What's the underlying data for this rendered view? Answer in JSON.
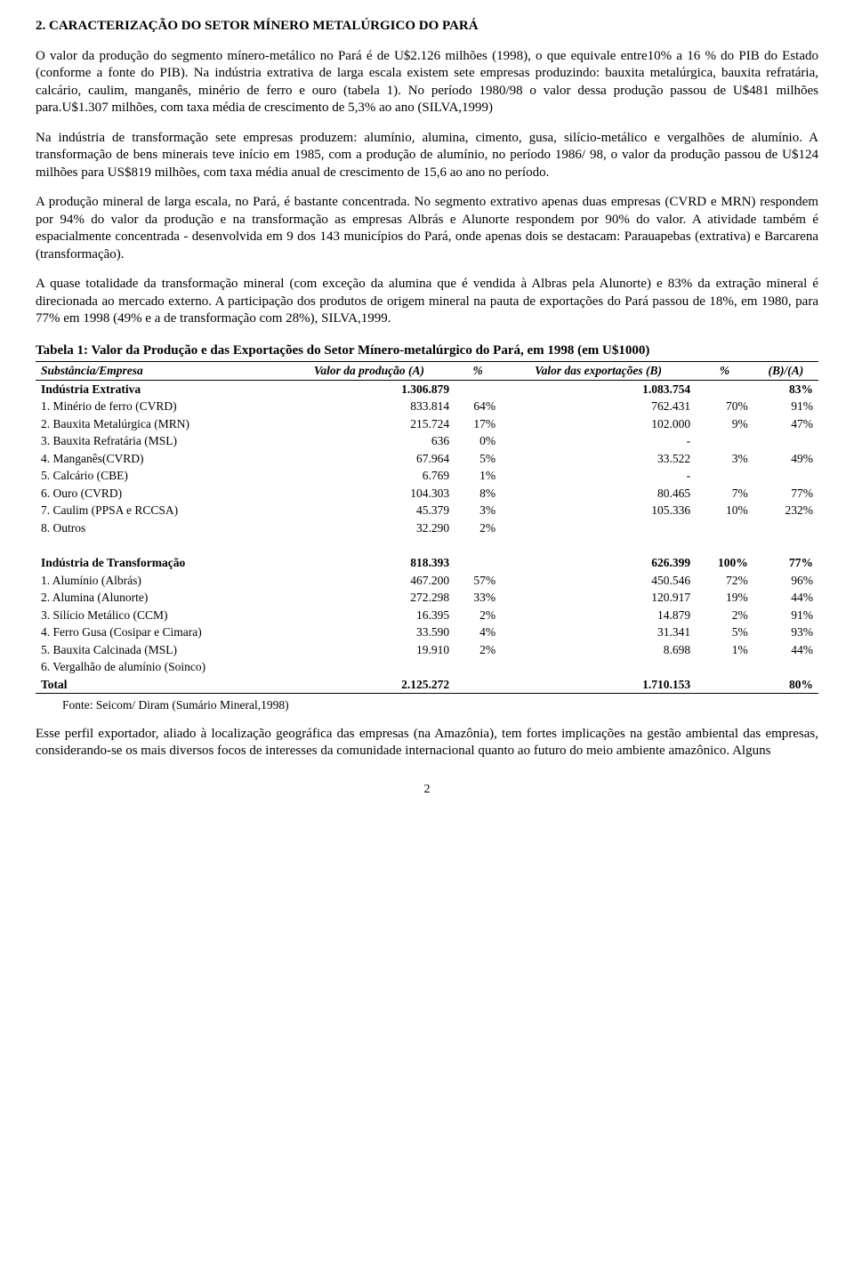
{
  "section_title": "2.  CARACTERIZAÇÃO DO SETOR MÍNERO METALÚRGICO DO PARÁ",
  "paragraphs": {
    "p1": "O valor da produção do segmento mínero-metálico no Pará é de U$2.126 milhões (1998), o que equivale entre10% a 16 % do PIB do Estado (conforme a fonte do PIB). Na indústria extrativa de larga escala existem sete empresas produzindo: bauxita metalúrgica, bauxita refratária, calcário, caulim, manganês, minério de ferro e ouro (tabela 1). No período 1980/98 o valor dessa produção passou de U$481 milhões para.U$1.307 milhões, com taxa média de crescimento de 5,3% ao ano (SILVA,1999)",
    "p2": "Na indústria de transformação sete empresas produzem: alumínio, alumina, cimento, gusa, silício-metálico e vergalhões de alumínio. A transformação de bens minerais teve início em 1985, com a produção de alumínio, no período 1986/ 98, o valor da produção passou de U$124 milhões para US$819 milhões, com taxa média anual de crescimento de 15,6 ao ano no período.",
    "p3": "A produção mineral de larga escala, no Pará, é bastante concentrada. No segmento extrativo apenas duas empresas (CVRD e MRN) respondem por 94% do valor da produção e na transformação as empresas Albrás e Alunorte respondem por 90% do valor. A atividade também é espacialmente concentrada - desenvolvida em 9 dos 143 municípios do Pará, onde apenas dois se destacam: Parauapebas (extrativa) e Barcarena (transformação).",
    "p4": "A quase totalidade da transformação mineral (com exceção da alumina que é vendida à Albras pela Alunorte) e 83% da extração mineral é direcionada ao mercado externo. A participação dos produtos de origem mineral na pauta de exportações do Pará passou de 18%, em 1980, para 77% em 1998 (49% e a de transformação com 28%), SILVA,1999.",
    "p5": "Esse perfil exportador, aliado à localização geográfica das empresas (na Amazônia), tem fortes implicações na gestão ambiental das empresas, considerando-se os mais diversos focos de interesses da comunidade internacional quanto ao futuro do meio ambiente amazônico. Alguns"
  },
  "table": {
    "title": "Tabela 1: Valor da Produção e das Exportações do Setor Mínero-metalúrgico do Pará, em 1998 (em U$1000)",
    "headers": {
      "c1": "Substância/Empresa",
      "c2": "Valor da produção (A)",
      "c3": "%",
      "c4": "Valor das exportações (B)",
      "c5": "%",
      "c6": "(B)/(A)"
    },
    "group1": {
      "label": "Indústria Extrativa",
      "valA": "1.306.879",
      "valB": "1.083.754",
      "ratio": "83%"
    },
    "rows1": [
      {
        "name": "1. Minério de ferro (CVRD)",
        "a": "833.814",
        "pa": "64%",
        "b": "762.431",
        "pb": "70%",
        "r": "91%"
      },
      {
        "name": "2. Bauxita Metalúrgica (MRN)",
        "a": "215.724",
        "pa": "17%",
        "b": "102.000",
        "pb": "9%",
        "r": "47%"
      },
      {
        "name": "3. Bauxita Refratária (MSL)",
        "a": "636",
        "pa": "0%",
        "b": "-",
        "pb": "",
        "r": ""
      },
      {
        "name": "4. Manganês(CVRD)",
        "a": "67.964",
        "pa": "5%",
        "b": "33.522",
        "pb": "3%",
        "r": "49%"
      },
      {
        "name": "5. Calcário (CBE)",
        "a": "6.769",
        "pa": "1%",
        "b": "-",
        "pb": "",
        "r": ""
      },
      {
        "name": "6. Ouro (CVRD)",
        "a": "104.303",
        "pa": "8%",
        "b": "80.465",
        "pb": "7%",
        "r": "77%"
      },
      {
        "name": "7. Caulim (PPSA e RCCSA)",
        "a": "45.379",
        "pa": "3%",
        "b": "105.336",
        "pb": "10%",
        "r": "232%"
      },
      {
        "name": "8. Outros",
        "a": "32.290",
        "pa": "2%",
        "b": "",
        "pb": "",
        "r": ""
      }
    ],
    "group2": {
      "label": "Indústria de Transformação",
      "valA": "818.393",
      "valB": "626.399",
      "pb": "100%",
      "ratio": "77%"
    },
    "rows2": [
      {
        "name": "1. Alumínio (Albrás)",
        "a": "467.200",
        "pa": "57%",
        "b": "450.546",
        "pb": "72%",
        "r": "96%"
      },
      {
        "name": "2. Alumina (Alunorte)",
        "a": "272.298",
        "pa": "33%",
        "b": "120.917",
        "pb": "19%",
        "r": "44%"
      },
      {
        "name": "3. Silício Metálico (CCM)",
        "a": "16.395",
        "pa": "2%",
        "b": "14.879",
        "pb": "2%",
        "r": "91%"
      },
      {
        "name": "4. Ferro Gusa (Cosipar e Cimara)",
        "a": "33.590",
        "pa": "4%",
        "b": "31.341",
        "pb": "5%",
        "r": "93%"
      },
      {
        "name": "5. Bauxita Calcinada (MSL)",
        "a": "19.910",
        "pa": "2%",
        "b": "8.698",
        "pb": "1%",
        "r": "44%"
      },
      {
        "name": "6. Vergalhão de alumínio (Soinco)",
        "a": "",
        "pa": "",
        "b": "",
        "pb": "",
        "r": ""
      }
    ],
    "total": {
      "label": "Total",
      "valA": "2.125.272",
      "valB": "1.710.153",
      "ratio": "80%"
    },
    "source": "Fonte: Seicom/ Diram (Sumário Mineral,1998)"
  },
  "page_number": "2"
}
